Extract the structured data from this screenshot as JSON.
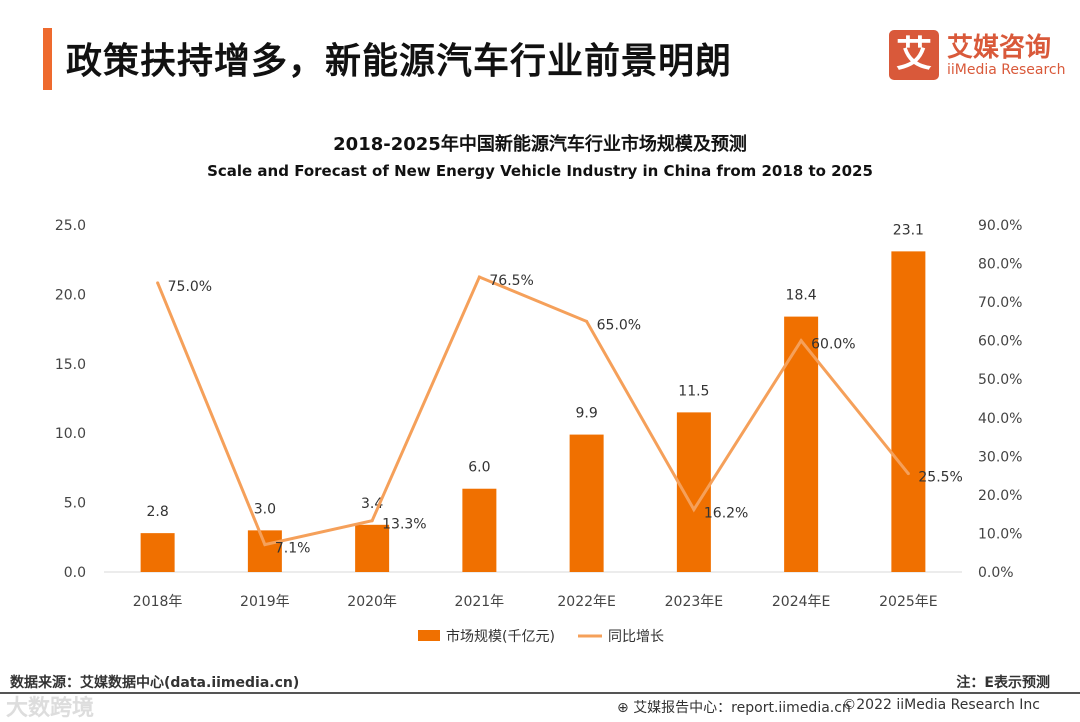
{
  "header": {
    "title": "政策扶持增多，新能源汽车行业前景明朗",
    "logo_mark": "艾",
    "logo_cn": "艾媒咨询",
    "logo_en": "iiMedia Research"
  },
  "chart_data": {
    "type": "bar+line",
    "title": "2018-2025年中国新能源汽车行业市场规模及预测",
    "subtitle": "Scale and Forecast of New Energy Vehicle Industry in China from 2018 to 2025",
    "categories": [
      "2018年",
      "2019年",
      "2020年",
      "2021年",
      "2022年E",
      "2023年E",
      "2024年E",
      "2025年E"
    ],
    "series": [
      {
        "name": "市场规模(千亿元)",
        "type": "bar",
        "axis": "left",
        "color": "#F07000",
        "values": [
          2.8,
          3.0,
          3.4,
          6.0,
          9.9,
          11.5,
          18.4,
          23.1
        ],
        "labels": [
          "2.8",
          "3.0",
          "3.4",
          "6.0",
          "9.9",
          "11.5",
          "18.4",
          "23.1"
        ]
      },
      {
        "name": "同比增长",
        "type": "line",
        "axis": "right",
        "color": "#F5A05A",
        "values": [
          75.0,
          7.1,
          13.3,
          76.5,
          65.0,
          16.2,
          60.0,
          25.5
        ],
        "labels": [
          "75.0%",
          "7.1%",
          "13.3%",
          "76.5%",
          "65.0%",
          "16.2%",
          "60.0%",
          "25.5%"
        ]
      }
    ],
    "ylim_left": [
      0,
      25
    ],
    "yticks_left": [
      "0.0",
      "5.0",
      "10.0",
      "15.0",
      "20.0",
      "25.0"
    ],
    "ylim_right": [
      0,
      90
    ],
    "yticks_right": [
      "0.0%",
      "10.0%",
      "20.0%",
      "30.0%",
      "40.0%",
      "50.0%",
      "60.0%",
      "70.0%",
      "80.0%",
      "90.0%"
    ],
    "legend": "bottom",
    "grid": false
  },
  "footer": {
    "source": "数据来源：艾媒数据中心(data.iimedia.cn)",
    "note": "注：E表示预测",
    "report": "艾媒报告中心：report.iimedia.cn",
    "copyright": "©2022  iiMedia Research  Inc",
    "watermark": "大数跨境"
  }
}
